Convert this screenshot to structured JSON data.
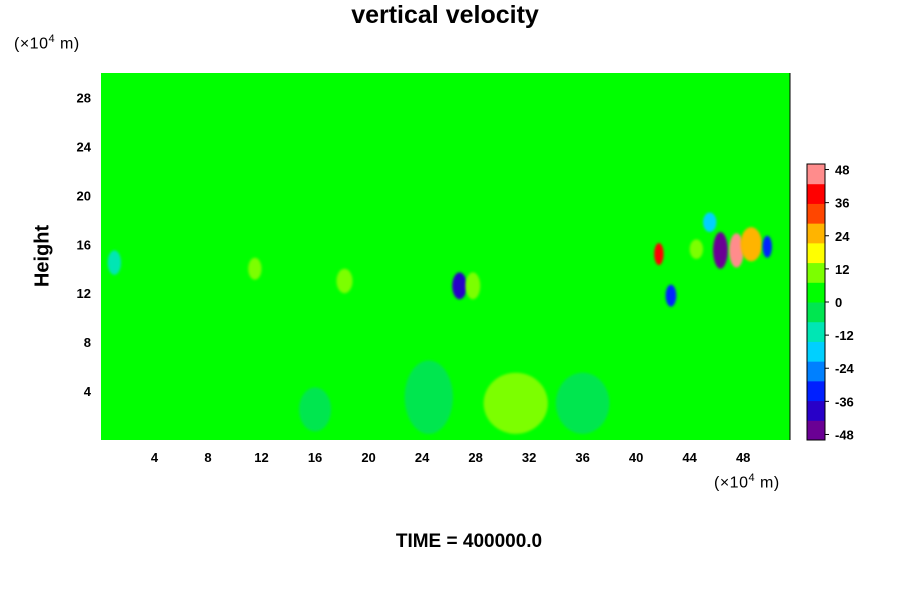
{
  "chart_data": {
    "type": "heatmap",
    "title": "vertical velocity",
    "xlabel": "",
    "ylabel": "Height",
    "x_unit_label": "(×10⁴ m)",
    "y_unit_label": "(×10⁴ m)",
    "xlim": [
      0,
      51.5
    ],
    "ylim": [
      0,
      30
    ],
    "x_ticks": [
      4,
      8,
      12,
      16,
      20,
      24,
      28,
      32,
      36,
      40,
      44,
      48
    ],
    "y_ticks": [
      4,
      8,
      12,
      16,
      20,
      24,
      28
    ],
    "colorbar": {
      "ticks": [
        48,
        36,
        24,
        12,
        0,
        -12,
        -24,
        -36,
        -48
      ],
      "range": [
        -50,
        50
      ],
      "colors": [
        "#6a0094",
        "#2800c8",
        "#0020ff",
        "#0080ff",
        "#00d0ff",
        "#00e6b4",
        "#00e650",
        "#00ff00",
        "#7cff00",
        "#ffff00",
        "#ffb400",
        "#ff4600",
        "#ff0000",
        "#ff8c8c"
      ]
    },
    "background_value": 0,
    "features": [
      {
        "x": 26.8,
        "y": 12.6,
        "value": -40,
        "rx": 0.55,
        "ry": 1.1
      },
      {
        "x": 27.8,
        "y": 12.6,
        "value": 14,
        "rx": 0.55,
        "ry": 1.1
      },
      {
        "x": 41.7,
        "y": 15.2,
        "value": 40,
        "rx": 0.35,
        "ry": 0.9
      },
      {
        "x": 42.6,
        "y": 11.8,
        "value": -30,
        "rx": 0.4,
        "ry": 0.9
      },
      {
        "x": 46.3,
        "y": 15.5,
        "value": -46,
        "rx": 0.55,
        "ry": 1.5
      },
      {
        "x": 47.5,
        "y": 15.5,
        "value": 44,
        "rx": 0.55,
        "ry": 1.4
      },
      {
        "x": 48.6,
        "y": 16.0,
        "value": 26,
        "rx": 0.8,
        "ry": 1.4
      },
      {
        "x": 49.8,
        "y": 15.8,
        "value": -30,
        "rx": 0.35,
        "ry": 0.9
      },
      {
        "x": 45.5,
        "y": 17.8,
        "value": -16,
        "rx": 0.5,
        "ry": 0.8
      },
      {
        "x": 44.5,
        "y": 15.6,
        "value": 12,
        "rx": 0.5,
        "ry": 0.8
      },
      {
        "x": 1.0,
        "y": 14.5,
        "value": -14,
        "rx": 0.5,
        "ry": 1.0
      },
      {
        "x": 18.2,
        "y": 13.0,
        "value": 10,
        "rx": 0.6,
        "ry": 1.0
      },
      {
        "x": 11.5,
        "y": 14.0,
        "value": 10,
        "rx": 0.5,
        "ry": 0.9
      },
      {
        "x": 31.0,
        "y": 3.0,
        "value": 8,
        "rx": 2.4,
        "ry": 2.5
      },
      {
        "x": 24.5,
        "y": 3.5,
        "value": -7,
        "rx": 1.8,
        "ry": 3.0
      },
      {
        "x": 36.0,
        "y": 3.0,
        "value": -5,
        "rx": 2.0,
        "ry": 2.5
      },
      {
        "x": 16.0,
        "y": 2.5,
        "value": -5,
        "rx": 1.2,
        "ry": 1.8
      },
      {
        "x": 5.0,
        "y": 2.0,
        "value": 5,
        "rx": 1.6,
        "ry": 1.8
      }
    ]
  },
  "footer": {
    "time_label": "TIME = 400000.0"
  }
}
